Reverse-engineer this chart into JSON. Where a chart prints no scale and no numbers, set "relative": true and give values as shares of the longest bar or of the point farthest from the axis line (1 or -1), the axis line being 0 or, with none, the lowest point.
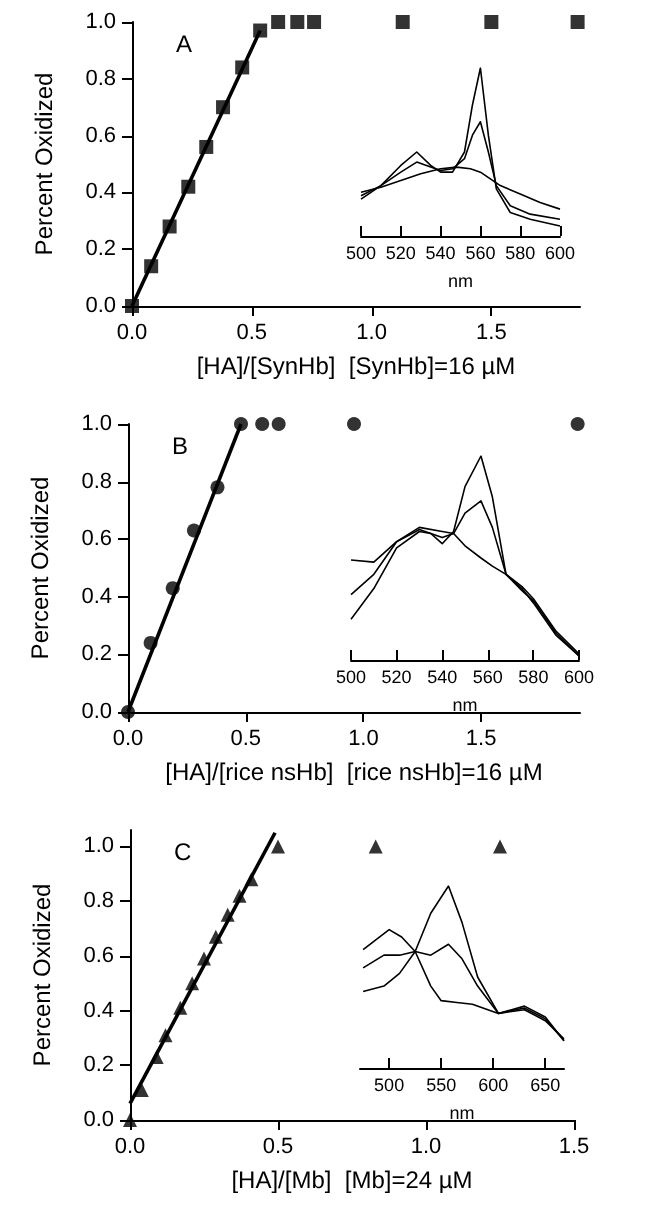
{
  "chart_data": [
    {
      "type": "scatter",
      "xlabel": "[HA]/[SynHb]  [SynHb]=16 µM",
      "ylabel": "Percent Oxidized",
      "annotations": [
        "A"
      ],
      "xlim": [
        0,
        1.87
      ],
      "ylim": [
        0,
        1.0
      ],
      "xticks": [
        {
          "value": 0,
          "label": "0.0"
        },
        {
          "value": 0.5,
          "label": "0.5"
        },
        {
          "value": 1,
          "label": "1.0"
        },
        {
          "value": 1.5,
          "label": "1.5"
        }
      ],
      "yticks": [
        {
          "value": 0,
          "label": "0.0"
        },
        {
          "value": 0.2,
          "label": "0.2"
        },
        {
          "value": 0.4,
          "label": "0.4"
        },
        {
          "value": 0.6,
          "label": "0.6"
        },
        {
          "value": 0.8,
          "label": "0.8"
        },
        {
          "value": 1,
          "label": "1.0"
        }
      ],
      "series": [
        {
          "color": "#000000",
          "marker": "square",
          "x": [
            0,
            0.08,
            0.157,
            0.235,
            0.31,
            0.38,
            0.46,
            0.535,
            0.61,
            0.69,
            0.76,
            1.13,
            1.5,
            1.86
          ],
          "values": [
            0,
            0.14,
            0.28,
            0.42,
            0.56,
            0.7,
            0.84,
            0.97,
            1.0,
            1.0,
            1.0,
            1.0,
            1.0,
            1.0
          ]
        },
        {
          "type": "line",
          "color": "#000000",
          "marker": "none",
          "x": [
            0,
            0.535
          ],
          "values": [
            0,
            0.97
          ]
        }
      ]
    },
    {
      "type": "line",
      "relative": true,
      "xlabel": "nm",
      "tick_labels": "x",
      "marker": "none",
      "xlim": [
        500,
        600
      ],
      "xticks": [
        500,
        520,
        540,
        560,
        580,
        600
      ],
      "series": [
        {
          "color": "#000000",
          "x": [
            500,
            510,
            520,
            528,
            535,
            540,
            546,
            552,
            556,
            560,
            564,
            568,
            575,
            585,
            600
          ],
          "values": [
            0.22,
            0.3,
            0.42,
            0.5,
            0.42,
            0.38,
            0.38,
            0.5,
            0.78,
            1.0,
            0.6,
            0.28,
            0.14,
            0.1,
            0.06
          ]
        },
        {
          "color": "#000000",
          "x": [
            500,
            510,
            520,
            528,
            535,
            540,
            546,
            552,
            556,
            560,
            564,
            568,
            575,
            585,
            600
          ],
          "values": [
            0.24,
            0.3,
            0.38,
            0.44,
            0.41,
            0.39,
            0.4,
            0.46,
            0.6,
            0.68,
            0.5,
            0.3,
            0.18,
            0.13,
            0.1
          ]
        },
        {
          "color": "#000000",
          "x": [
            500,
            510,
            520,
            530,
            540,
            548,
            555,
            560,
            565,
            570,
            580,
            590,
            600
          ],
          "values": [
            0.26,
            0.29,
            0.33,
            0.37,
            0.4,
            0.41,
            0.4,
            0.38,
            0.34,
            0.3,
            0.25,
            0.2,
            0.16
          ]
        }
      ]
    },
    {
      "type": "scatter",
      "xlabel": "[HA]/[rice nsHb]  [rice nsHb]=16 µM",
      "ylabel": "Percent Oxidized",
      "annotations": [
        "B"
      ],
      "xlim": [
        0,
        1.92
      ],
      "ylim": [
        0,
        1.0
      ],
      "xticks": [
        {
          "value": 0,
          "label": "0.0"
        },
        {
          "value": 0.5,
          "label": "0.5"
        },
        {
          "value": 1,
          "label": "1.0"
        },
        {
          "value": 1.5,
          "label": "1.5"
        }
      ],
      "yticks": [
        {
          "value": 0,
          "label": "0.0"
        },
        {
          "value": 0.2,
          "label": "0.2"
        },
        {
          "value": 0.4,
          "label": "0.4"
        },
        {
          "value": 0.6,
          "label": "0.6"
        },
        {
          "value": 0.8,
          "label": "0.8"
        },
        {
          "value": 1,
          "label": "1.0"
        }
      ],
      "series": [
        {
          "color": "#000000",
          "marker": "circle",
          "x": [
            0,
            0.096,
            0.19,
            0.28,
            0.38,
            0.48,
            0.57,
            0.64,
            0.96,
            1.91
          ],
          "values": [
            0,
            0.24,
            0.43,
            0.63,
            0.78,
            1.0,
            1.0,
            1.0,
            1.0,
            1.0
          ]
        },
        {
          "type": "line",
          "color": "#000000",
          "marker": "none",
          "x": [
            0,
            0.48
          ],
          "values": [
            0,
            1.0
          ]
        }
      ]
    },
    {
      "type": "line",
      "relative": true,
      "xlabel": "nm",
      "tick_labels": "x",
      "marker": "none",
      "xlim": [
        500,
        600
      ],
      "xticks": [
        500,
        520,
        540,
        560,
        580,
        600
      ],
      "series": [
        {
          "color": "#000000",
          "x": [
            500,
            510,
            520,
            530,
            535,
            540,
            545,
            550,
            557,
            562,
            568,
            575,
            580,
            590,
            600
          ],
          "values": [
            0.2,
            0.35,
            0.55,
            0.63,
            0.62,
            0.57,
            0.63,
            0.85,
            1.0,
            0.8,
            0.42,
            0.35,
            0.28,
            0.12,
            0.02
          ]
        },
        {
          "color": "#000000",
          "x": [
            500,
            510,
            520,
            530,
            540,
            545,
            550,
            557,
            562,
            568,
            575,
            580,
            590,
            600
          ],
          "values": [
            0.32,
            0.42,
            0.58,
            0.64,
            0.6,
            0.62,
            0.72,
            0.78,
            0.65,
            0.42,
            0.34,
            0.29,
            0.13,
            0.02
          ]
        },
        {
          "color": "#000000",
          "x": [
            500,
            510,
            520,
            530,
            540,
            545,
            550,
            557,
            562,
            568,
            575,
            580,
            590,
            600
          ],
          "values": [
            0.49,
            0.48,
            0.58,
            0.65,
            0.63,
            0.62,
            0.56,
            0.5,
            0.46,
            0.42,
            0.36,
            0.3,
            0.14,
            0.03
          ]
        }
      ]
    },
    {
      "type": "scatter",
      "xlabel": "[HA]/[Mb]  [Mb]=24 µM",
      "ylabel": "Percent Oxidized",
      "annotations": [
        "C"
      ],
      "xlim": [
        0,
        1.5
      ],
      "ylim": [
        0,
        1.06
      ],
      "xticks": [
        {
          "value": 0,
          "label": "0.0"
        },
        {
          "value": 0.5,
          "label": "0.5"
        },
        {
          "value": 1,
          "label": "1.0"
        },
        {
          "value": 1.5,
          "label": "1.5"
        }
      ],
      "yticks": [
        {
          "value": 0,
          "label": "0.0"
        },
        {
          "value": 0.2,
          "label": "0.2"
        },
        {
          "value": 0.4,
          "label": "0.4"
        },
        {
          "value": 0.6,
          "label": "0.6"
        },
        {
          "value": 0.8,
          "label": "0.8"
        },
        {
          "value": 1,
          "label": "1.0"
        }
      ],
      "series": [
        {
          "color": "#000000",
          "marker": "triangle",
          "x": [
            0,
            0.04,
            0.09,
            0.12,
            0.17,
            0.21,
            0.25,
            0.29,
            0.33,
            0.37,
            0.41,
            0.5,
            0.83,
            1.25
          ],
          "values": [
            0,
            0.11,
            0.23,
            0.31,
            0.41,
            0.5,
            0.59,
            0.67,
            0.75,
            0.82,
            0.88,
            1.0,
            1.0,
            1.0
          ]
        },
        {
          "type": "line",
          "color": "#000000",
          "marker": "none",
          "x": [
            0,
            0.49
          ],
          "values": [
            0.06,
            1.05
          ]
        }
      ]
    },
    {
      "type": "line",
      "relative": true,
      "xlabel": "nm",
      "tick_labels": "x",
      "marker": "none",
      "xlim": [
        472,
        668
      ],
      "xticks": [
        500,
        550,
        600,
        650
      ],
      "series": [
        {
          "color": "#000000",
          "x": [
            475,
            495,
            510,
            525,
            540,
            557,
            570,
            585,
            605,
            630,
            650,
            668
          ],
          "values": [
            0.42,
            0.45,
            0.52,
            0.64,
            0.85,
            1.0,
            0.8,
            0.5,
            0.3,
            0.34,
            0.28,
            0.15
          ]
        },
        {
          "color": "#000000",
          "x": [
            475,
            495,
            510,
            525,
            540,
            557,
            570,
            585,
            605,
            630,
            650,
            668
          ],
          "values": [
            0.55,
            0.62,
            0.62,
            0.64,
            0.62,
            0.68,
            0.6,
            0.45,
            0.3,
            0.33,
            0.27,
            0.15
          ]
        },
        {
          "color": "#000000",
          "x": [
            475,
            500,
            512,
            525,
            540,
            550,
            565,
            580,
            605,
            630,
            650,
            668
          ],
          "values": [
            0.65,
            0.76,
            0.72,
            0.64,
            0.45,
            0.37,
            0.36,
            0.35,
            0.3,
            0.32,
            0.26,
            0.16
          ]
        }
      ]
    }
  ]
}
